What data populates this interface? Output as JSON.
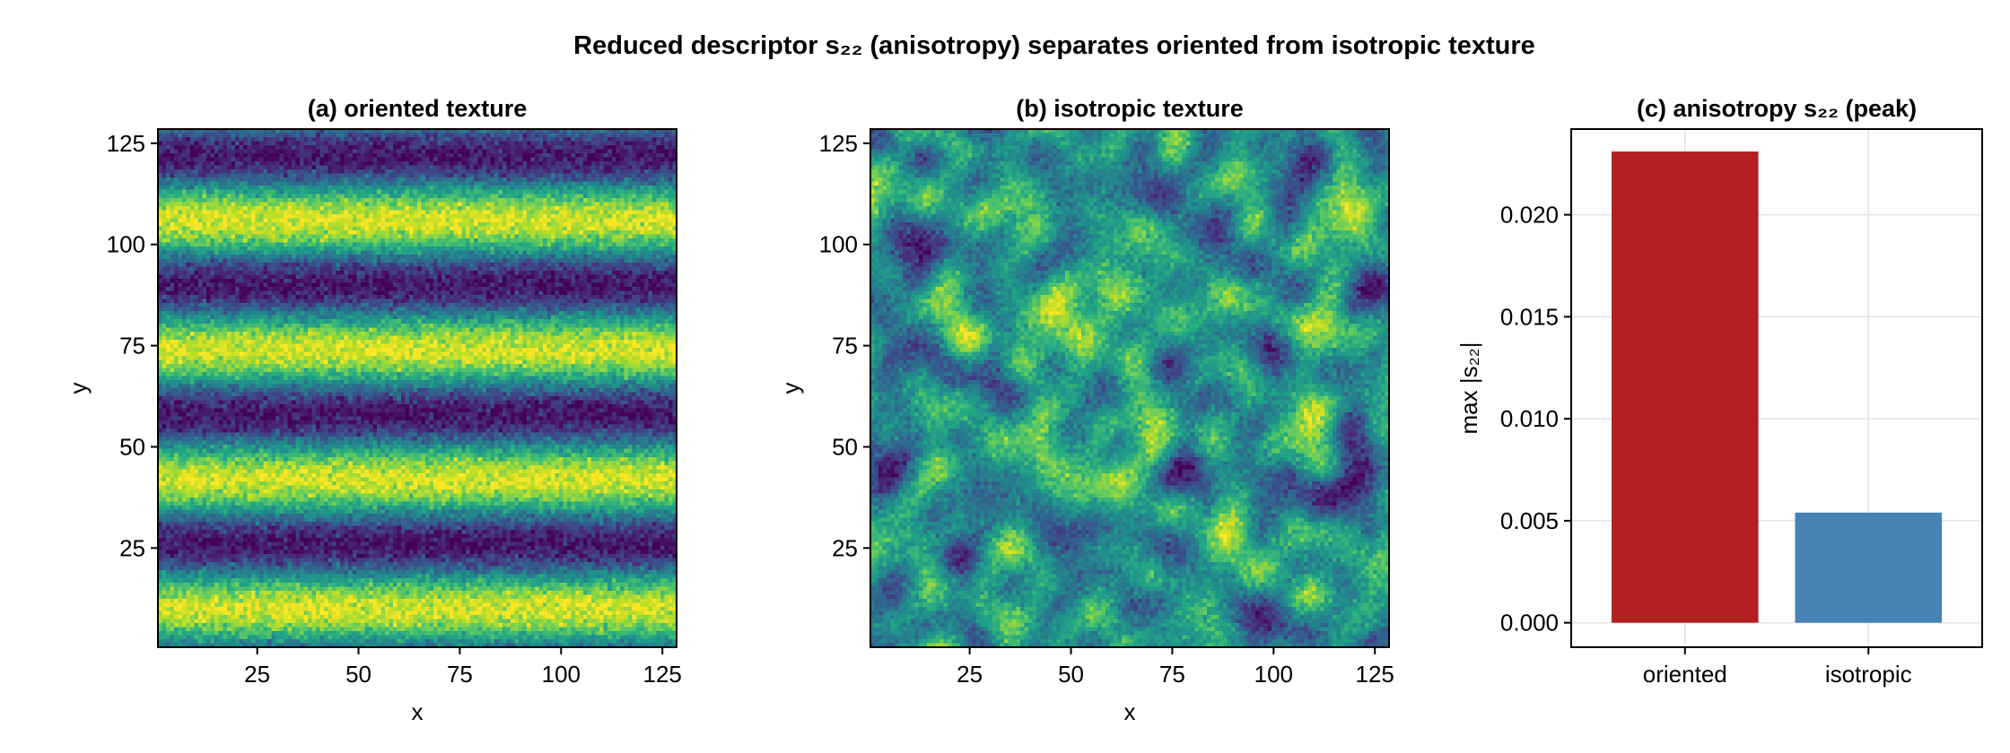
{
  "figure": {
    "title": "Reduced descriptor s₂₂ (anisotropy) separates oriented from isotropic texture"
  },
  "colors": {
    "oriented_bar": "#b22022",
    "isotropic_bar": "#4682b4",
    "colormap": [
      "#440154",
      "#3b528b",
      "#21918c",
      "#5ec962",
      "#fde725"
    ]
  },
  "chart_data": [
    {
      "type": "heatmap",
      "title": "(a) oriented texture",
      "xlabel": "x",
      "ylabel": "y",
      "xlim": [
        1,
        128
      ],
      "ylim": [
        1,
        128
      ],
      "xticks": [
        25,
        50,
        75,
        100,
        125
      ],
      "yticks": [
        25,
        50,
        75,
        100,
        125
      ],
      "pattern": "horizontal stripes (sinusoid along y) plus fine noise",
      "stripe_period_y": 32,
      "colormap": "viridis",
      "grid": false
    },
    {
      "type": "heatmap",
      "title": "(b) isotropic texture",
      "xlabel": "x",
      "ylabel": "y",
      "xlim": [
        1,
        128
      ],
      "ylim": [
        1,
        128
      ],
      "xticks": [
        25,
        50,
        75,
        100,
        125
      ],
      "yticks": [
        25,
        50,
        75,
        100,
        125
      ],
      "pattern": "isotropic smooth random field plus fine noise",
      "colormap": "viridis",
      "grid": false
    },
    {
      "type": "bar",
      "title": "(c) anisotropy s₂₂ (peak)",
      "categories": [
        "oriented",
        "isotropic"
      ],
      "values": [
        0.0231,
        0.0054
      ],
      "xlabel": "",
      "ylabel": "max |s₂₂|",
      "ylim": [
        -0.0012,
        0.0242
      ],
      "yticks": [
        0.0,
        0.005,
        0.01,
        0.015,
        0.02
      ],
      "ytick_labels": [
        "0.000",
        "0.005",
        "0.010",
        "0.015",
        "0.020"
      ],
      "grid": true
    }
  ]
}
